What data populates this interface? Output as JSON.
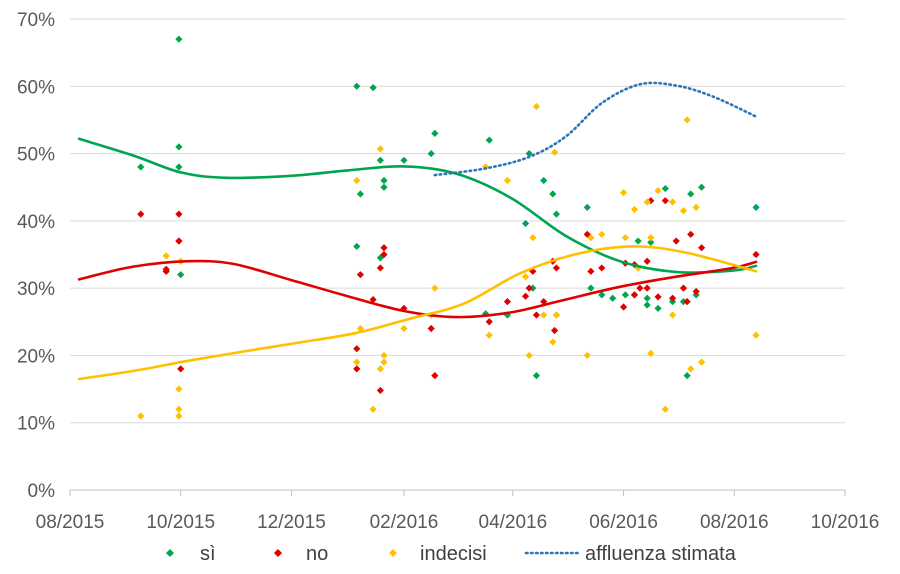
{
  "chart_data": {
    "type": "scatter",
    "title": "",
    "xlabel": "",
    "ylabel": "",
    "xlim": [
      "2015-08-01",
      "2016-10-01"
    ],
    "ylim": [
      0,
      0.7
    ],
    "x_ticks": [
      "08/2015",
      "10/2015",
      "12/2015",
      "02/2016",
      "04/2016",
      "06/2016",
      "08/2016",
      "10/2016"
    ],
    "x_tick_dates": [
      "2015-08-01",
      "2015-10-01",
      "2015-12-01",
      "2016-02-01",
      "2016-04-01",
      "2016-06-01",
      "2016-08-01",
      "2016-10-01"
    ],
    "y_ticks": [
      "0%",
      "10%",
      "20%",
      "30%",
      "40%",
      "50%",
      "60%",
      "70%"
    ],
    "y_tick_values": [
      0,
      0.1,
      0.2,
      0.3,
      0.4,
      0.5,
      0.6,
      0.7
    ],
    "grid": "horizontal",
    "legend_position": "bottom",
    "series": [
      {
        "name": "sì",
        "kind": "scatter",
        "color": "#00a550",
        "points": [
          [
            "2015-09-09",
            0.48
          ],
          [
            "2015-09-23",
            0.325
          ],
          [
            "2015-09-30",
            0.51
          ],
          [
            "2015-09-30",
            0.67
          ],
          [
            "2015-09-30",
            0.48
          ],
          [
            "2015-10-01",
            0.32
          ],
          [
            "2016-01-06",
            0.6
          ],
          [
            "2016-01-06",
            0.362
          ],
          [
            "2016-01-08",
            0.44
          ],
          [
            "2016-01-15",
            0.598
          ],
          [
            "2016-01-19",
            0.49
          ],
          [
            "2016-01-19",
            0.345
          ],
          [
            "2016-01-21",
            0.45
          ],
          [
            "2016-01-21",
            0.46
          ],
          [
            "2016-02-01",
            0.49
          ],
          [
            "2016-02-16",
            0.5
          ],
          [
            "2016-02-18",
            0.53
          ],
          [
            "2016-03-17",
            0.262
          ],
          [
            "2016-03-19",
            0.52
          ],
          [
            "2016-03-29",
            0.26
          ],
          [
            "2016-04-08",
            0.396
          ],
          [
            "2016-04-10",
            0.5
          ],
          [
            "2016-04-12",
            0.3
          ],
          [
            "2016-04-14",
            0.17
          ],
          [
            "2016-04-18",
            0.46
          ],
          [
            "2016-04-23",
            0.44
          ],
          [
            "2016-04-25",
            0.41
          ],
          [
            "2016-04-25",
            0.26
          ],
          [
            "2016-05-12",
            0.42
          ],
          [
            "2016-05-14",
            0.3
          ],
          [
            "2016-05-20",
            0.29
          ],
          [
            "2016-05-26",
            0.285
          ],
          [
            "2016-06-02",
            0.29
          ],
          [
            "2016-06-07",
            0.29
          ],
          [
            "2016-06-09",
            0.37
          ],
          [
            "2016-06-14",
            0.275
          ],
          [
            "2016-06-14",
            0.285
          ],
          [
            "2016-06-16",
            0.368
          ],
          [
            "2016-06-20",
            0.27
          ],
          [
            "2016-06-24",
            0.448
          ],
          [
            "2016-06-28",
            0.28
          ],
          [
            "2016-07-04",
            0.28
          ],
          [
            "2016-07-06",
            0.17
          ],
          [
            "2016-07-08",
            0.44
          ],
          [
            "2016-07-11",
            0.29
          ],
          [
            "2016-07-14",
            0.45
          ],
          [
            "2016-08-13",
            0.42
          ]
        ]
      },
      {
        "name": "no",
        "kind": "scatter",
        "color": "#e00000",
        "points": [
          [
            "2015-09-09",
            0.41
          ],
          [
            "2015-09-23",
            0.325
          ],
          [
            "2015-09-23",
            0.328
          ],
          [
            "2015-09-30",
            0.41
          ],
          [
            "2015-09-30",
            0.37
          ],
          [
            "2015-09-30",
            0.37
          ],
          [
            "2015-10-01",
            0.18
          ],
          [
            "2016-01-06",
            0.21
          ],
          [
            "2016-01-06",
            0.18
          ],
          [
            "2016-01-08",
            0.32
          ],
          [
            "2016-01-15",
            0.283
          ],
          [
            "2016-01-19",
            0.33
          ],
          [
            "2016-01-19",
            0.148
          ],
          [
            "2016-01-21",
            0.36
          ],
          [
            "2016-01-21",
            0.35
          ],
          [
            "2016-02-01",
            0.27
          ],
          [
            "2016-02-16",
            0.24
          ],
          [
            "2016-02-18",
            0.17
          ],
          [
            "2016-03-19",
            0.25
          ],
          [
            "2016-03-29",
            0.28
          ],
          [
            "2016-04-08",
            0.288
          ],
          [
            "2016-04-10",
            0.3
          ],
          [
            "2016-04-12",
            0.325
          ],
          [
            "2016-04-14",
            0.26
          ],
          [
            "2016-04-18",
            0.28
          ],
          [
            "2016-04-23",
            0.34
          ],
          [
            "2016-04-24",
            0.237
          ],
          [
            "2016-04-25",
            0.33
          ],
          [
            "2016-05-12",
            0.38
          ],
          [
            "2016-05-14",
            0.325
          ],
          [
            "2016-05-20",
            0.33
          ],
          [
            "2016-06-01",
            0.272
          ],
          [
            "2016-06-02",
            0.337
          ],
          [
            "2016-06-07",
            0.29
          ],
          [
            "2016-06-07",
            0.335
          ],
          [
            "2016-06-10",
            0.3
          ],
          [
            "2016-06-14",
            0.34
          ],
          [
            "2016-06-14",
            0.3
          ],
          [
            "2016-06-16",
            0.43
          ],
          [
            "2016-06-20",
            0.287
          ],
          [
            "2016-06-24",
            0.43
          ],
          [
            "2016-06-28",
            0.285
          ],
          [
            "2016-06-30",
            0.37
          ],
          [
            "2016-07-04",
            0.3
          ],
          [
            "2016-07-06",
            0.28
          ],
          [
            "2016-07-08",
            0.38
          ],
          [
            "2016-07-11",
            0.295
          ],
          [
            "2016-07-14",
            0.36
          ],
          [
            "2016-08-13",
            0.35
          ]
        ]
      },
      {
        "name": "indecisi",
        "kind": "scatter",
        "color": "#ffc000",
        "points": [
          [
            "2015-09-09",
            0.11
          ],
          [
            "2015-09-23",
            0.348
          ],
          [
            "2015-09-30",
            0.11
          ],
          [
            "2015-09-30",
            0.12
          ],
          [
            "2015-09-30",
            0.15
          ],
          [
            "2015-10-01",
            0.34
          ],
          [
            "2016-01-06",
            0.46
          ],
          [
            "2016-01-06",
            0.19
          ],
          [
            "2016-01-08",
            0.24
          ],
          [
            "2016-01-15",
            0.12
          ],
          [
            "2016-01-19",
            0.507
          ],
          [
            "2016-01-19",
            0.18
          ],
          [
            "2016-01-21",
            0.2
          ],
          [
            "2016-01-21",
            0.19
          ],
          [
            "2016-02-01",
            0.24
          ],
          [
            "2016-02-16",
            0.26
          ],
          [
            "2016-02-18",
            0.3
          ],
          [
            "2016-03-17",
            0.48
          ],
          [
            "2016-03-19",
            0.23
          ],
          [
            "2016-03-29",
            0.46
          ],
          [
            "2016-04-08",
            0.317
          ],
          [
            "2016-04-10",
            0.2
          ],
          [
            "2016-04-12",
            0.375
          ],
          [
            "2016-04-14",
            0.57
          ],
          [
            "2016-04-18",
            0.26
          ],
          [
            "2016-04-23",
            0.22
          ],
          [
            "2016-04-24",
            0.502
          ],
          [
            "2016-04-25",
            0.26
          ],
          [
            "2016-05-12",
            0.2
          ],
          [
            "2016-05-14",
            0.375
          ],
          [
            "2016-05-20",
            0.38
          ],
          [
            "2016-06-01",
            0.442
          ],
          [
            "2016-06-02",
            0.375
          ],
          [
            "2016-06-07",
            0.417
          ],
          [
            "2016-06-09",
            0.33
          ],
          [
            "2016-06-14",
            0.428
          ],
          [
            "2016-06-16",
            0.203
          ],
          [
            "2016-06-16",
            0.375
          ],
          [
            "2016-06-20",
            0.445
          ],
          [
            "2016-06-24",
            0.12
          ],
          [
            "2016-06-28",
            0.428
          ],
          [
            "2016-06-28",
            0.26
          ],
          [
            "2016-07-04",
            0.415
          ],
          [
            "2016-07-06",
            0.55
          ],
          [
            "2016-07-08",
            0.18
          ],
          [
            "2016-07-11",
            0.42
          ],
          [
            "2016-07-14",
            0.19
          ],
          [
            "2016-08-13",
            0.23
          ]
        ]
      },
      {
        "name": "",
        "kind": "trend",
        "color": "#00a550",
        "points": [
          [
            "2015-08-06",
            0.522
          ],
          [
            "2015-09-05",
            0.497
          ],
          [
            "2015-10-01",
            0.472
          ],
          [
            "2015-10-26",
            0.464
          ],
          [
            "2015-12-01",
            0.467
          ],
          [
            "2016-01-01",
            0.475
          ],
          [
            "2016-02-01",
            0.481
          ],
          [
            "2016-03-01",
            0.47
          ],
          [
            "2016-03-31",
            0.434
          ],
          [
            "2016-04-30",
            0.378
          ],
          [
            "2016-05-30",
            0.34
          ],
          [
            "2016-06-30",
            0.324
          ],
          [
            "2016-07-31",
            0.326
          ],
          [
            "2016-08-13",
            0.333
          ]
        ]
      },
      {
        "name": "",
        "kind": "trend",
        "color": "#e00000",
        "points": [
          [
            "2015-08-06",
            0.313
          ],
          [
            "2015-09-05",
            0.332
          ],
          [
            "2015-10-05",
            0.34
          ],
          [
            "2015-10-30",
            0.336
          ],
          [
            "2015-12-01",
            0.312
          ],
          [
            "2016-01-01",
            0.288
          ],
          [
            "2016-02-01",
            0.266
          ],
          [
            "2016-03-01",
            0.257
          ],
          [
            "2016-03-31",
            0.264
          ],
          [
            "2016-04-30",
            0.283
          ],
          [
            "2016-05-30",
            0.302
          ],
          [
            "2016-06-30",
            0.317
          ],
          [
            "2016-07-31",
            0.33
          ],
          [
            "2016-08-13",
            0.339
          ]
        ]
      },
      {
        "name": "",
        "kind": "trend",
        "color": "#ffc000",
        "points": [
          [
            "2015-08-06",
            0.165
          ],
          [
            "2015-09-05",
            0.177
          ],
          [
            "2015-10-05",
            0.192
          ],
          [
            "2015-11-05",
            0.206
          ],
          [
            "2015-12-05",
            0.219
          ],
          [
            "2016-01-05",
            0.233
          ],
          [
            "2016-02-05",
            0.255
          ],
          [
            "2016-03-05",
            0.277
          ],
          [
            "2016-04-05",
            0.322
          ],
          [
            "2016-05-05",
            0.35
          ],
          [
            "2016-06-05",
            0.362
          ],
          [
            "2016-07-05",
            0.353
          ],
          [
            "2016-08-13",
            0.325
          ]
        ]
      },
      {
        "name": "affluenza stimata",
        "kind": "dotted-line",
        "color": "#2e75b6",
        "points": [
          [
            "2016-02-18",
            0.468
          ],
          [
            "2016-03-17",
            0.478
          ],
          [
            "2016-04-10",
            0.495
          ],
          [
            "2016-04-30",
            0.525
          ],
          [
            "2016-05-20",
            0.575
          ],
          [
            "2016-06-10",
            0.603
          ],
          [
            "2016-06-30",
            0.601
          ],
          [
            "2016-07-20",
            0.585
          ],
          [
            "2016-08-13",
            0.555
          ]
        ]
      }
    ]
  }
}
